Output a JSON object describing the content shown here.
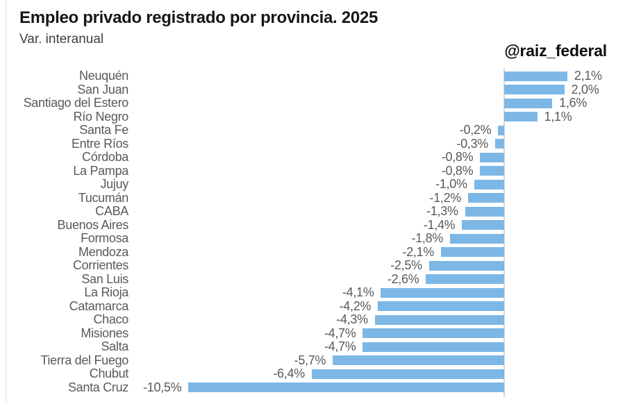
{
  "page": {
    "title": "Empleo privado registrado por provincia. 2025",
    "subtitle": "Var. interanual",
    "attribution": "@raiz_federal"
  },
  "colors": {
    "bar": "#7db7e5",
    "zero_line": "#d6d6d6",
    "label_text": "#58595b",
    "title_text": "#161616",
    "subtitle_text": "#3d3e40",
    "left_edge_line": "#ececec"
  },
  "chart_data": {
    "type": "bar",
    "orientation": "horizontal",
    "title": "Empleo privado registrado por provincia. 2025",
    "subtitle": "Var. interanual",
    "unit": "%",
    "xlim": [
      -10.5,
      2.1
    ],
    "grid": false,
    "legend": false,
    "baseline": 0,
    "categories": [
      "Neuquén",
      "San Juan",
      "Santiago del Estero",
      "Río Negro",
      "Santa Fe",
      "Entre Ríos",
      "Córdoba",
      "La Pampa",
      "Jujuy",
      "Tucumán",
      "CABA",
      "Buenos Aires",
      "Formosa",
      "Mendoza",
      "Corrientes",
      "San Luis",
      "La Rioja",
      "Catamarca",
      "Chaco",
      "Misiones",
      "Salta",
      "Tierra del Fuego",
      "Chubut",
      "Santa Cruz"
    ],
    "values": [
      2.1,
      2.0,
      1.6,
      1.1,
      -0.2,
      -0.3,
      -0.8,
      -0.8,
      -1.0,
      -1.2,
      -1.3,
      -1.4,
      -1.8,
      -2.1,
      -2.5,
      -2.6,
      -4.1,
      -4.2,
      -4.3,
      -4.7,
      -4.7,
      -5.7,
      -6.4,
      -10.5
    ],
    "value_labels": [
      "2,1%",
      "2,0%",
      "1,6%",
      "1,1%",
      "-0,2%",
      "-0,3%",
      "-0,8%",
      "-0,8%",
      "-1,0%",
      "-1,2%",
      "-1,3%",
      "-1,4%",
      "-1,8%",
      "-2,1%",
      "-2,5%",
      "-2,6%",
      "-4,1%",
      "-4,2%",
      "-4,3%",
      "-4,7%",
      "-4,7%",
      "-5,7%",
      "-6,4%",
      "-10,5%"
    ]
  }
}
